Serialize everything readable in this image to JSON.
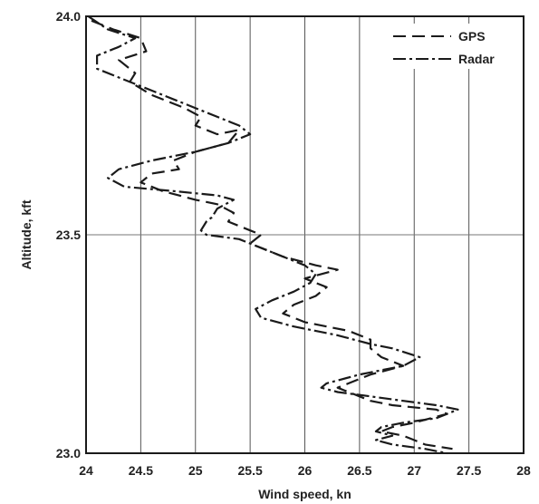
{
  "chart_data": {
    "type": "line",
    "title": "",
    "xlabel": "Wind speed, kn",
    "ylabel": "Altitude, kft",
    "xlim": [
      24,
      28
    ],
    "ylim": [
      23.0,
      24.0
    ],
    "x_tick_labels": [
      "24",
      "24.5",
      "25",
      "25.5",
      "26",
      "26.5",
      "27",
      "27.5",
      "28"
    ],
    "y_tick_labels": [
      "23.0",
      "23.5",
      "24.0"
    ],
    "grid": "vertical lines at x ticks, horizontal line at 23.5",
    "legend_position": "top-right",
    "series": [
      {
        "name": "GPS",
        "style": "dashed",
        "color": "#1a1a1a",
        "points": [
          [
            24.05,
            23.99
          ],
          [
            24.25,
            23.97
          ],
          [
            24.5,
            23.95
          ],
          [
            24.55,
            23.92
          ],
          [
            24.3,
            23.9
          ],
          [
            24.45,
            23.87
          ],
          [
            24.4,
            23.85
          ],
          [
            24.6,
            23.82
          ],
          [
            24.9,
            23.79
          ],
          [
            25.05,
            23.77
          ],
          [
            25.0,
            23.75
          ],
          [
            25.2,
            23.73
          ],
          [
            25.4,
            23.74
          ],
          [
            25.3,
            23.71
          ],
          [
            25.0,
            23.69
          ],
          [
            24.8,
            23.67
          ],
          [
            24.85,
            23.65
          ],
          [
            24.6,
            23.64
          ],
          [
            24.5,
            23.62
          ],
          [
            24.7,
            23.6
          ],
          [
            25.0,
            23.58
          ],
          [
            25.2,
            23.57
          ],
          [
            25.35,
            23.55
          ],
          [
            25.3,
            23.53
          ],
          [
            25.5,
            23.51
          ],
          [
            25.6,
            23.5
          ],
          [
            25.5,
            23.48
          ],
          [
            25.8,
            23.45
          ],
          [
            26.1,
            23.43
          ],
          [
            26.3,
            23.42
          ],
          [
            26.0,
            23.4
          ],
          [
            26.2,
            23.38
          ],
          [
            26.1,
            23.36
          ],
          [
            25.9,
            23.34
          ],
          [
            25.8,
            23.32
          ],
          [
            26.0,
            23.3
          ],
          [
            26.4,
            23.28
          ],
          [
            26.6,
            23.26
          ],
          [
            26.6,
            23.24
          ],
          [
            26.7,
            23.22
          ],
          [
            26.9,
            23.2
          ],
          [
            26.6,
            23.18
          ],
          [
            26.4,
            23.16
          ],
          [
            26.3,
            23.15
          ],
          [
            26.5,
            23.13
          ],
          [
            26.6,
            23.12
          ],
          [
            26.8,
            23.11
          ],
          [
            27.2,
            23.1
          ],
          [
            27.3,
            23.09
          ],
          [
            27.0,
            23.07
          ],
          [
            26.8,
            23.06
          ],
          [
            26.7,
            23.05
          ],
          [
            26.9,
            23.04
          ],
          [
            27.0,
            23.03
          ],
          [
            27.1,
            23.02
          ],
          [
            27.35,
            23.01
          ]
        ]
      },
      {
        "name": "Radar",
        "style": "dash-dot",
        "color": "#1a1a1a",
        "points": [
          [
            24.02,
            24.0
          ],
          [
            24.2,
            23.97
          ],
          [
            24.45,
            23.95
          ],
          [
            24.3,
            23.93
          ],
          [
            24.1,
            23.91
          ],
          [
            24.1,
            23.88
          ],
          [
            24.3,
            23.86
          ],
          [
            24.6,
            23.83
          ],
          [
            24.9,
            23.8
          ],
          [
            25.2,
            23.77
          ],
          [
            25.4,
            23.75
          ],
          [
            25.5,
            23.73
          ],
          [
            25.3,
            23.71
          ],
          [
            25.0,
            23.69
          ],
          [
            24.6,
            23.67
          ],
          [
            24.3,
            23.65
          ],
          [
            24.2,
            23.63
          ],
          [
            24.35,
            23.61
          ],
          [
            24.8,
            23.6
          ],
          [
            25.2,
            23.59
          ],
          [
            25.35,
            23.58
          ],
          [
            25.2,
            23.56
          ],
          [
            25.15,
            23.54
          ],
          [
            25.1,
            23.53
          ],
          [
            25.05,
            23.51
          ],
          [
            25.1,
            23.5
          ],
          [
            25.4,
            23.49
          ],
          [
            25.6,
            23.47
          ],
          [
            25.8,
            23.45
          ],
          [
            26.0,
            23.43
          ],
          [
            26.1,
            23.41
          ],
          [
            26.05,
            23.39
          ],
          [
            25.9,
            23.37
          ],
          [
            25.7,
            23.35
          ],
          [
            25.55,
            23.33
          ],
          [
            25.6,
            23.31
          ],
          [
            25.9,
            23.29
          ],
          [
            26.3,
            23.27
          ],
          [
            26.6,
            23.25
          ],
          [
            26.8,
            23.24
          ],
          [
            27.05,
            23.22
          ],
          [
            26.9,
            23.2
          ],
          [
            26.5,
            23.18
          ],
          [
            26.2,
            23.16
          ],
          [
            26.15,
            23.15
          ],
          [
            26.3,
            23.14
          ],
          [
            26.6,
            23.13
          ],
          [
            26.9,
            23.12
          ],
          [
            27.2,
            23.11
          ],
          [
            27.4,
            23.1
          ],
          [
            27.2,
            23.08
          ],
          [
            26.9,
            23.07
          ],
          [
            26.7,
            23.06
          ],
          [
            26.65,
            23.05
          ],
          [
            26.8,
            23.04
          ],
          [
            26.65,
            23.03
          ],
          [
            26.8,
            23.02
          ],
          [
            27.1,
            23.01
          ],
          [
            27.3,
            23.0
          ]
        ]
      }
    ]
  }
}
